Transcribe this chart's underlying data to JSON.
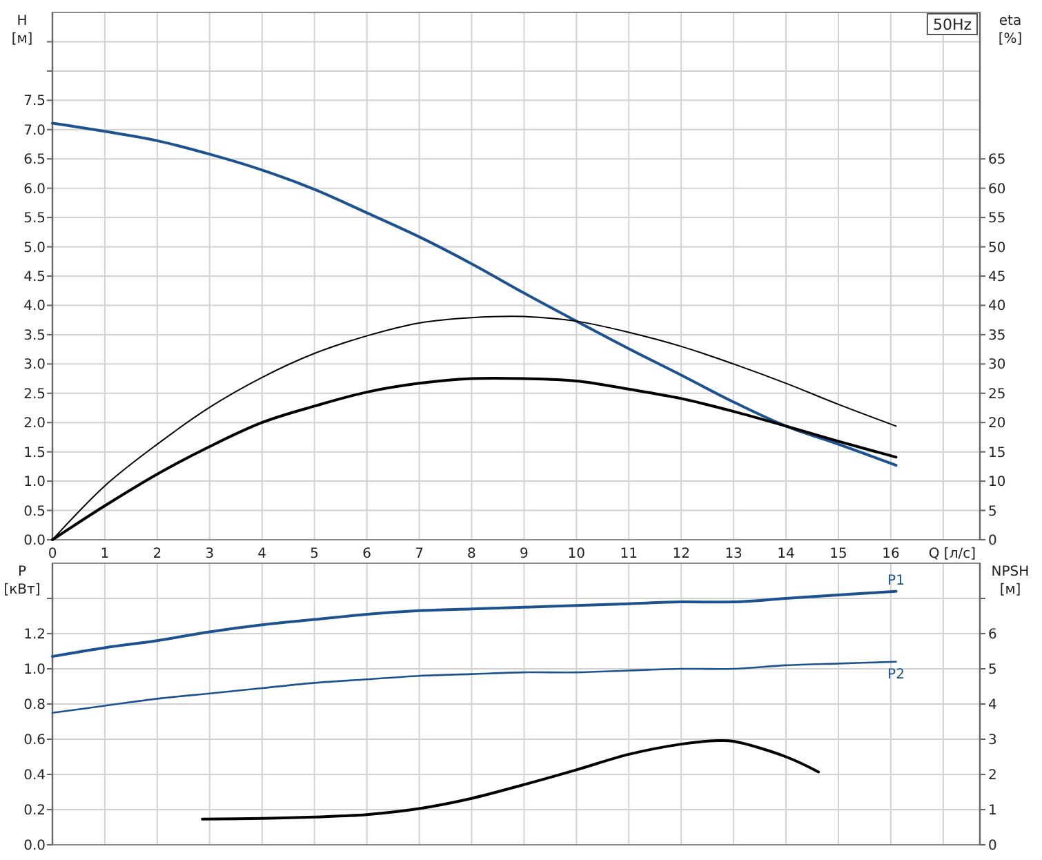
{
  "chart_data": [
    {
      "type": "line",
      "title": "50Hz",
      "xlabel": "Q [л/с]",
      "ylabel": "H [м]",
      "y2label": "eta [%]",
      "xlim": [
        0,
        17.7
      ],
      "xticks": [
        0,
        1,
        2,
        3,
        4,
        5,
        6,
        7,
        8,
        9,
        10,
        11,
        12,
        13,
        14,
        15,
        16,
        {
          "value": 17,
          "label": null
        }
      ],
      "ylim": [
        0,
        9
      ],
      "yticks": [
        {
          "value": 0,
          "label": "0.0"
        },
        0.5,
        {
          "value": 1,
          "label": "1.0"
        },
        1.5,
        {
          "value": 2,
          "label": "2.0"
        },
        2.5,
        {
          "value": 3,
          "label": "3.0"
        },
        3.5,
        {
          "value": 4,
          "label": "4.0"
        },
        4.5,
        {
          "value": 5,
          "label": "5.0"
        },
        5.5,
        {
          "value": 6,
          "label": "6.0"
        },
        6.5,
        {
          "value": 7,
          "label": "7.0"
        },
        7.5,
        {
          "value": 8,
          "label": null
        },
        {
          "value": 8.5,
          "label": null
        }
      ],
      "y2lim": [
        0,
        90
      ],
      "y2ticks": [
        0,
        5,
        10,
        15,
        20,
        25,
        30,
        35,
        40,
        45,
        50,
        55,
        60,
        65
      ],
      "grid": true,
      "series": [
        {
          "color": "#1d5290",
          "x": [
            0,
            1,
            2,
            3,
            4,
            5,
            6,
            7,
            8,
            9,
            10,
            11,
            12,
            13,
            14,
            15,
            16.1
          ],
          "values": [
            7.11,
            6.97,
            6.81,
            6.58,
            6.31,
            5.98,
            5.58,
            5.17,
            4.71,
            4.21,
            3.73,
            3.26,
            2.81,
            2.35,
            1.94,
            1.63,
            1.27
          ]
        },
        {
          "color": "#000000",
          "axis": "y2",
          "x": [
            0,
            1,
            2,
            3,
            4,
            5,
            6,
            7,
            8,
            9,
            10,
            11,
            12,
            13,
            14,
            15,
            16.1
          ],
          "values": [
            0,
            9.2,
            16.3,
            22.6,
            27.7,
            31.8,
            34.8,
            37,
            37.9,
            38.1,
            37.3,
            35.4,
            33,
            30,
            26.7,
            23.1,
            19.4
          ]
        },
        {
          "color": "#000000",
          "axis": "y2",
          "x": [
            0,
            1,
            2,
            3,
            4,
            5,
            6,
            7,
            8,
            9,
            10,
            11,
            12,
            13,
            14,
            15,
            16.1
          ],
          "values": [
            0,
            5.8,
            11.2,
            15.9,
            20,
            22.8,
            25.2,
            26.7,
            27.5,
            27.5,
            27.1,
            25.7,
            24.1,
            21.9,
            19.4,
            16.8,
            14.1
          ]
        }
      ]
    },
    {
      "type": "line",
      "ylabel": "P [кВт]",
      "y2label": "NPSH [м]",
      "xlim": [
        0,
        17.7
      ],
      "xticks": [
        0,
        1,
        2,
        3,
        4,
        5,
        6,
        7,
        8,
        9,
        10,
        11,
        12,
        13,
        14,
        15,
        16,
        {
          "value": 17,
          "label": null
        }
      ],
      "ylim": [
        0,
        1.6
      ],
      "yticks": [
        {
          "value": 0,
          "label": "0.0"
        },
        0.2,
        0.4,
        0.6,
        0.8,
        {
          "value": 1,
          "label": "1.0"
        },
        1.2,
        {
          "value": 1.4,
          "label": null
        }
      ],
      "y2lim": [
        0,
        8
      ],
      "y2ticks": [
        0,
        1,
        2,
        3,
        4,
        5,
        6,
        {
          "value": 7,
          "label": null
        }
      ],
      "grid": true,
      "tick_labels": "y",
      "series": [
        {
          "name": "P1",
          "color": "#1d5290",
          "x": [
            0,
            1,
            2,
            3,
            4,
            5,
            6,
            7,
            8,
            9,
            10,
            11,
            12,
            13,
            14,
            15,
            16.1
          ],
          "values": [
            1.07,
            1.12,
            1.16,
            1.21,
            1.25,
            1.28,
            1.31,
            1.33,
            1.34,
            1.35,
            1.36,
            1.37,
            1.38,
            1.38,
            1.4,
            1.42,
            1.44
          ]
        },
        {
          "name": "P2",
          "color": "#1d5290",
          "x": [
            0,
            1,
            2,
            3,
            4,
            5,
            6,
            7,
            8,
            9,
            10,
            11,
            12,
            13,
            14,
            15,
            16.1
          ],
          "values": [
            0.75,
            0.79,
            0.83,
            0.86,
            0.89,
            0.92,
            0.94,
            0.96,
            0.97,
            0.98,
            0.98,
            0.99,
            1,
            1,
            1.02,
            1.03,
            1.04
          ]
        },
        {
          "color": "#000000",
          "axis": "y2",
          "x": [
            2.86,
            4,
            5,
            6,
            7,
            8,
            9,
            10,
            11,
            12,
            12.7,
            13,
            14,
            14.62
          ],
          "values": [
            0.73,
            0.75,
            0.79,
            0.86,
            1.03,
            1.32,
            1.71,
            2.13,
            2.57,
            2.86,
            2.96,
            2.94,
            2.5,
            2.07
          ]
        }
      ]
    }
  ]
}
